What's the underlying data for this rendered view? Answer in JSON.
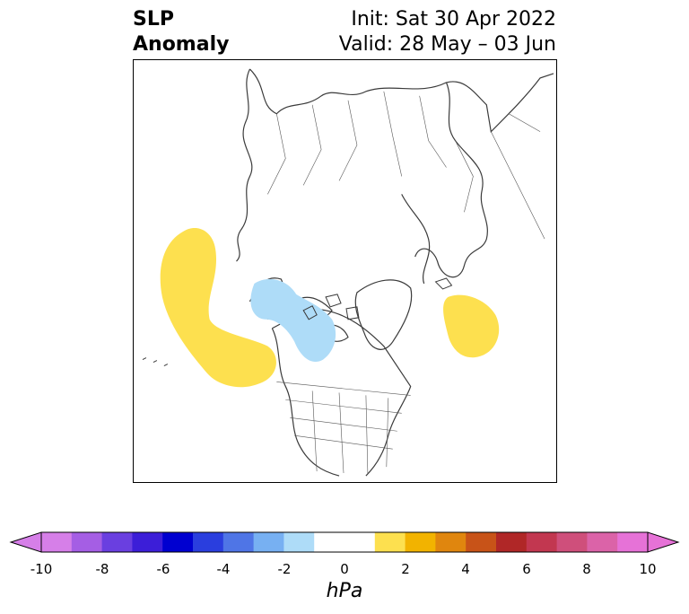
{
  "title": {
    "left_line1": "SLP",
    "left_line2": "Anomaly",
    "right_line1": "Init: Sat 30 Apr 2022",
    "right_line2": "Valid: 28 May – 03 Jun"
  },
  "colorbar": {
    "ticks": [
      "-10",
      "-8",
      "-6",
      "-4",
      "-2",
      "0",
      "2",
      "4",
      "6",
      "8",
      "10"
    ],
    "unit": "hPa",
    "colors": [
      "#d67fe8",
      "#a55ee4",
      "#6a3fe0",
      "#3c1ed8",
      "#0000d0",
      "#2a3ede",
      "#4f75e6",
      "#77b0f2",
      "#aedcf8",
      "#ffffff",
      "#ffffff",
      "#fde04f",
      "#f2b300",
      "#e0860e",
      "#c85318",
      "#b02727",
      "#c23750",
      "#cf4f7b",
      "#db63a8",
      "#e672d7"
    ],
    "min": -10,
    "max": 10,
    "step": 1
  },
  "map": {
    "projection": "polar stereographic north",
    "anomaly_regions": [
      {
        "sign": "positive",
        "category": "1 to 2 hPa",
        "color": "#fde04f",
        "location": "North Pacific"
      },
      {
        "sign": "positive",
        "category": "1 to 2 hPa",
        "color": "#fde04f",
        "location": "North Atlantic / Iceland"
      },
      {
        "sign": "negative",
        "category": "-2 to -1 hPa",
        "color": "#aedcf8",
        "location": "Canadian Arctic"
      }
    ]
  }
}
